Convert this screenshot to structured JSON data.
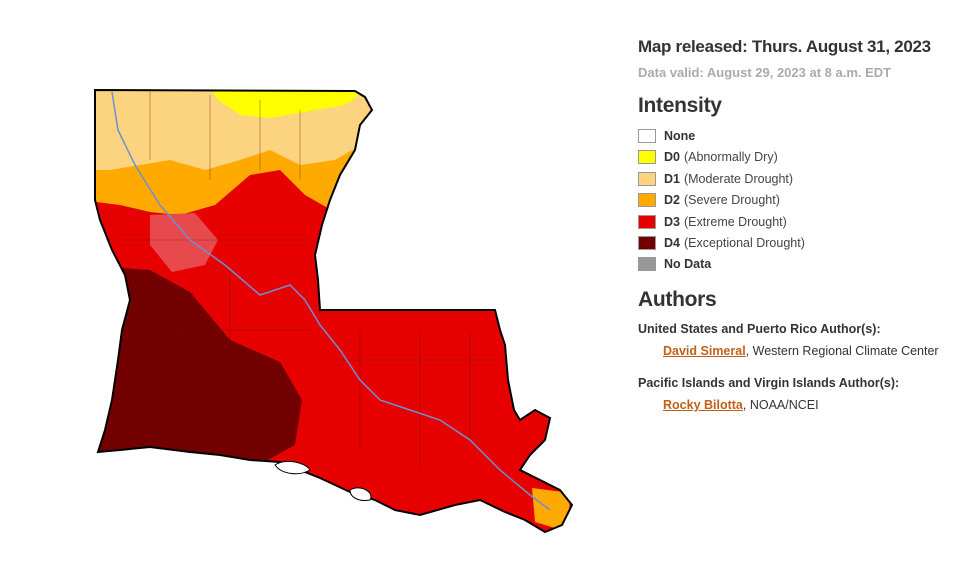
{
  "header": {
    "released": "Map released: Thurs. August 31, 2023",
    "valid": "Data valid: August 29, 2023 at 8 a.m. EDT"
  },
  "legend": {
    "title": "Intensity",
    "items": [
      {
        "code": "None",
        "color": "#ffffff"
      },
      {
        "code": "D0",
        "desc": "(Abnormally Dry)",
        "color": "#ffff00"
      },
      {
        "code": "D1",
        "desc": "(Moderate Drought)",
        "color": "#fcd37f"
      },
      {
        "code": "D2",
        "desc": "(Severe Drought)",
        "color": "#ffaa00"
      },
      {
        "code": "D3",
        "desc": "(Extreme Drought)",
        "color": "#e60000"
      },
      {
        "code": "D4",
        "desc": "(Exceptional Drought)",
        "color": "#730000"
      },
      {
        "code": "No Data",
        "color": "#999999"
      }
    ]
  },
  "authors": {
    "title": "Authors",
    "groups": [
      {
        "heading": "United States and Puerto Rico Author(s):",
        "name": "David Simeral",
        "after": ", Western Regional Climate Center"
      },
      {
        "heading": "Pacific Islands and Virgin Islands Author(s):",
        "name": "Rocky Bilotta",
        "after": ", NOAA/NCEI"
      }
    ]
  }
}
